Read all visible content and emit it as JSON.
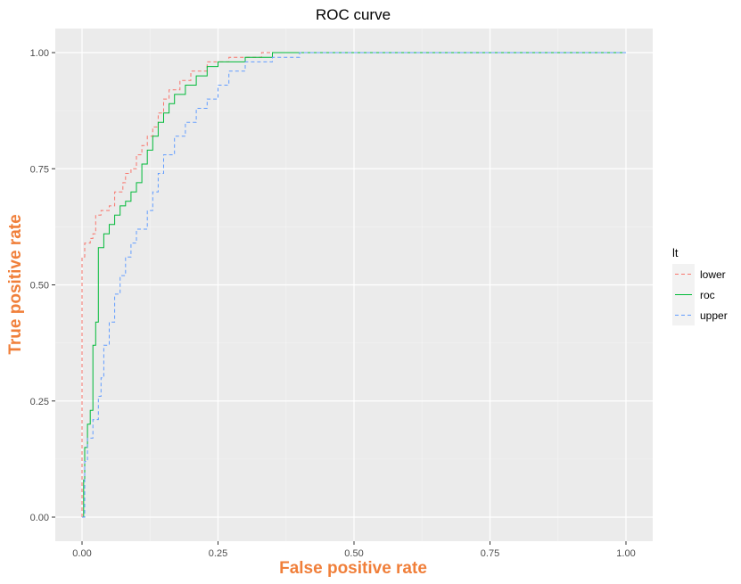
{
  "chart_data": {
    "type": "line",
    "title": "ROC curve",
    "xlabel": "False positive rate",
    "ylabel": "True positive rate",
    "xlim": [
      0,
      1
    ],
    "ylim": [
      0,
      1
    ],
    "x_ticks": [
      "0.00",
      "0.25",
      "0.50",
      "0.75",
      "1.00"
    ],
    "y_ticks": [
      "0.00",
      "0.25",
      "0.50",
      "0.75",
      "1.00"
    ],
    "grid": true,
    "legend": {
      "title": "lt",
      "position": "right"
    },
    "series": [
      {
        "name": "lower",
        "color": "#f8766d",
        "dash": true,
        "points": [
          [
            0,
            0
          ],
          [
            0,
            0.56
          ],
          [
            0.005,
            0.59
          ],
          [
            0.015,
            0.6
          ],
          [
            0.02,
            0.61
          ],
          [
            0.025,
            0.65
          ],
          [
            0.035,
            0.66
          ],
          [
            0.05,
            0.67
          ],
          [
            0.06,
            0.7
          ],
          [
            0.075,
            0.72
          ],
          [
            0.08,
            0.74
          ],
          [
            0.09,
            0.75
          ],
          [
            0.1,
            0.78
          ],
          [
            0.11,
            0.8
          ],
          [
            0.12,
            0.82
          ],
          [
            0.13,
            0.84
          ],
          [
            0.14,
            0.87
          ],
          [
            0.15,
            0.9
          ],
          [
            0.16,
            0.92
          ],
          [
            0.18,
            0.94
          ],
          [
            0.2,
            0.96
          ],
          [
            0.23,
            0.98
          ],
          [
            0.27,
            0.99
          ],
          [
            0.33,
            1.0
          ],
          [
            0.4,
            1.0
          ],
          [
            1.0,
            1.0
          ]
        ]
      },
      {
        "name": "roc",
        "color": "#00ba38",
        "dash": false,
        "points": [
          [
            0,
            0
          ],
          [
            0.003,
            0.08
          ],
          [
            0.005,
            0.15
          ],
          [
            0.01,
            0.2
          ],
          [
            0.015,
            0.23
          ],
          [
            0.02,
            0.37
          ],
          [
            0.025,
            0.42
          ],
          [
            0.03,
            0.58
          ],
          [
            0.04,
            0.61
          ],
          [
            0.05,
            0.63
          ],
          [
            0.06,
            0.65
          ],
          [
            0.07,
            0.67
          ],
          [
            0.08,
            0.68
          ],
          [
            0.09,
            0.7
          ],
          [
            0.1,
            0.72
          ],
          [
            0.11,
            0.76
          ],
          [
            0.12,
            0.79
          ],
          [
            0.13,
            0.82
          ],
          [
            0.14,
            0.85
          ],
          [
            0.15,
            0.87
          ],
          [
            0.16,
            0.89
          ],
          [
            0.17,
            0.91
          ],
          [
            0.19,
            0.93
          ],
          [
            0.21,
            0.95
          ],
          [
            0.23,
            0.97
          ],
          [
            0.25,
            0.98
          ],
          [
            0.3,
            0.99
          ],
          [
            0.35,
            1.0
          ],
          [
            1.0,
            1.0
          ]
        ]
      },
      {
        "name": "upper",
        "color": "#619cff",
        "dash": true,
        "points": [
          [
            0,
            0
          ],
          [
            0.005,
            0.12
          ],
          [
            0.01,
            0.17
          ],
          [
            0.02,
            0.21
          ],
          [
            0.03,
            0.26
          ],
          [
            0.035,
            0.3
          ],
          [
            0.04,
            0.37
          ],
          [
            0.05,
            0.42
          ],
          [
            0.06,
            0.48
          ],
          [
            0.07,
            0.52
          ],
          [
            0.08,
            0.56
          ],
          [
            0.09,
            0.59
          ],
          [
            0.1,
            0.62
          ],
          [
            0.12,
            0.66
          ],
          [
            0.13,
            0.7
          ],
          [
            0.14,
            0.74
          ],
          [
            0.15,
            0.78
          ],
          [
            0.17,
            0.82
          ],
          [
            0.19,
            0.85
          ],
          [
            0.21,
            0.88
          ],
          [
            0.23,
            0.9
          ],
          [
            0.25,
            0.93
          ],
          [
            0.27,
            0.96
          ],
          [
            0.3,
            0.98
          ],
          [
            0.35,
            0.99
          ],
          [
            0.4,
            1.0
          ],
          [
            1.0,
            1.0
          ]
        ]
      }
    ]
  }
}
